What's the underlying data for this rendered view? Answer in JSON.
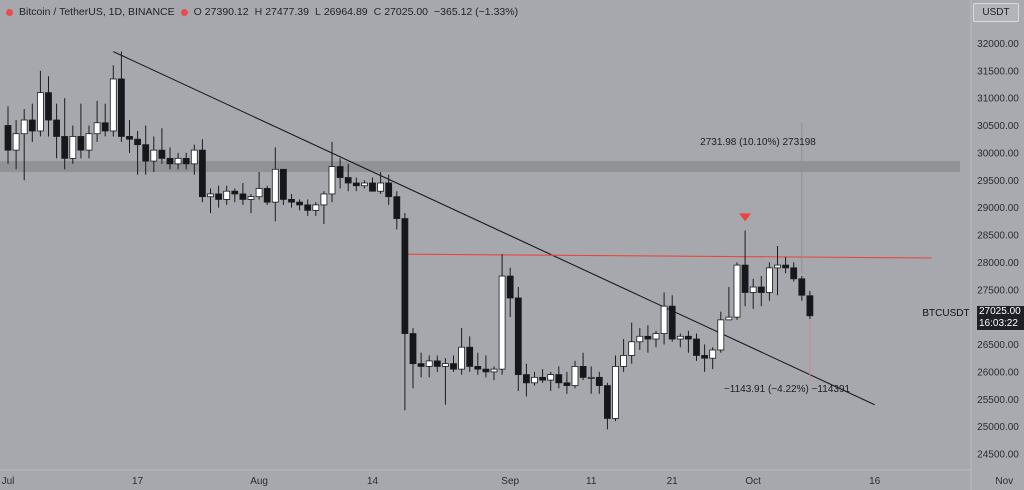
{
  "header": {
    "symbol": "Bitcoin / TetherUS, 1D, BINANCE",
    "open_label": "O",
    "open": "27390.12",
    "high_label": "H",
    "high": "27477.39",
    "low_label": "L",
    "low": "26964.89",
    "close_label": "C",
    "close": "27025.00",
    "change": "−365.12 (−1.33%)"
  },
  "currency_button": "USDT",
  "ticker_label": "BTCUSDT",
  "price_tag": {
    "price": "27025.00",
    "countdown": "16:03:22"
  },
  "annotations": {
    "up_measure": "2731.98 (10.10%) 273198",
    "down_measure": "−1143.91 (−4.22%) −114391"
  },
  "colors": {
    "background": "#a7a8ad",
    "bull_candle": "#ffffff",
    "bear_candle": "#16171b",
    "resistance_line": "#e8463f",
    "marker": "#e8463f",
    "zone": "#8e8f94",
    "trendline": "#1a1b1f"
  },
  "chart_data": {
    "type": "candlestick",
    "title": "",
    "xlabel": "",
    "ylabel": "",
    "ylim": [
      24000,
      32500
    ],
    "y_ticks": [
      24500,
      25000,
      25500,
      26000,
      26500,
      27000,
      27500,
      28000,
      28500,
      29000,
      29500,
      30000,
      30500,
      31000,
      31500,
      32000
    ],
    "x_ticks": [
      {
        "day": 0,
        "label": "Jul"
      },
      {
        "day": 16,
        "label": "17"
      },
      {
        "day": 31,
        "label": "Aug"
      },
      {
        "day": 45,
        "label": "14"
      },
      {
        "day": 62,
        "label": "Sep"
      },
      {
        "day": 72,
        "label": "11"
      },
      {
        "day": 82,
        "label": "21"
      },
      {
        "day": 92,
        "label": "Oct"
      },
      {
        "day": 107,
        "label": "16"
      },
      {
        "day": 123,
        "label": "Nov"
      }
    ],
    "candles": [
      {
        "o": 30500,
        "h": 30850,
        "l": 29800,
        "c": 30050
      },
      {
        "o": 30050,
        "h": 30600,
        "l": 29700,
        "c": 30350
      },
      {
        "o": 30350,
        "h": 30800,
        "l": 29500,
        "c": 30600
      },
      {
        "o": 30600,
        "h": 30900,
        "l": 30200,
        "c": 30400
      },
      {
        "o": 30400,
        "h": 31500,
        "l": 30300,
        "c": 31100
      },
      {
        "o": 31100,
        "h": 31400,
        "l": 30300,
        "c": 30600
      },
      {
        "o": 30600,
        "h": 30900,
        "l": 29900,
        "c": 30300
      },
      {
        "o": 30300,
        "h": 31000,
        "l": 29700,
        "c": 29900
      },
      {
        "o": 29900,
        "h": 30500,
        "l": 29800,
        "c": 30300
      },
      {
        "o": 30300,
        "h": 30900,
        "l": 29900,
        "c": 30050
      },
      {
        "o": 30050,
        "h": 30500,
        "l": 29900,
        "c": 30350
      },
      {
        "o": 30350,
        "h": 30950,
        "l": 30200,
        "c": 30550
      },
      {
        "o": 30550,
        "h": 30900,
        "l": 30300,
        "c": 30400
      },
      {
        "o": 30400,
        "h": 31600,
        "l": 30300,
        "c": 31350
      },
      {
        "o": 31350,
        "h": 31850,
        "l": 30200,
        "c": 30300
      },
      {
        "o": 30300,
        "h": 30600,
        "l": 30000,
        "c": 30250
      },
      {
        "o": 30250,
        "h": 30400,
        "l": 29600,
        "c": 30150
      },
      {
        "o": 30150,
        "h": 30500,
        "l": 29600,
        "c": 29850
      },
      {
        "o": 29850,
        "h": 30300,
        "l": 29650,
        "c": 30050
      },
      {
        "o": 30050,
        "h": 30450,
        "l": 29800,
        "c": 29900
      },
      {
        "o": 29900,
        "h": 30100,
        "l": 29700,
        "c": 29800
      },
      {
        "o": 29800,
        "h": 30000,
        "l": 29700,
        "c": 29900
      },
      {
        "o": 29900,
        "h": 30000,
        "l": 29700,
        "c": 29800
      },
      {
        "o": 29800,
        "h": 30150,
        "l": 29600,
        "c": 30050
      },
      {
        "o": 30050,
        "h": 30250,
        "l": 29100,
        "c": 29200
      },
      {
        "o": 29200,
        "h": 29350,
        "l": 28900,
        "c": 29250
      },
      {
        "o": 29250,
        "h": 29400,
        "l": 29000,
        "c": 29150
      },
      {
        "o": 29150,
        "h": 29400,
        "l": 29050,
        "c": 29300
      },
      {
        "o": 29300,
        "h": 29350,
        "l": 29100,
        "c": 29250
      },
      {
        "o": 29250,
        "h": 29450,
        "l": 29050,
        "c": 29150
      },
      {
        "o": 29150,
        "h": 29250,
        "l": 28900,
        "c": 29200
      },
      {
        "o": 29200,
        "h": 29650,
        "l": 29150,
        "c": 29350
      },
      {
        "o": 29350,
        "h": 29400,
        "l": 29050,
        "c": 29100
      },
      {
        "o": 29100,
        "h": 30100,
        "l": 28750,
        "c": 29700
      },
      {
        "o": 29700,
        "h": 29700,
        "l": 29050,
        "c": 29150
      },
      {
        "o": 29150,
        "h": 29250,
        "l": 29000,
        "c": 29100
      },
      {
        "o": 29100,
        "h": 29150,
        "l": 28950,
        "c": 29050
      },
      {
        "o": 29050,
        "h": 29150,
        "l": 28850,
        "c": 28950
      },
      {
        "o": 28950,
        "h": 29100,
        "l": 28850,
        "c": 29050
      },
      {
        "o": 29050,
        "h": 29300,
        "l": 28700,
        "c": 29250
      },
      {
        "o": 29250,
        "h": 30200,
        "l": 29100,
        "c": 29750
      },
      {
        "o": 29750,
        "h": 29900,
        "l": 29350,
        "c": 29550
      },
      {
        "o": 29550,
        "h": 29800,
        "l": 29300,
        "c": 29450
      },
      {
        "o": 29450,
        "h": 29550,
        "l": 29300,
        "c": 29400
      },
      {
        "o": 29400,
        "h": 29500,
        "l": 29350,
        "c": 29450
      },
      {
        "o": 29450,
        "h": 29550,
        "l": 29350,
        "c": 29300
      },
      {
        "o": 29300,
        "h": 29650,
        "l": 29250,
        "c": 29450
      },
      {
        "o": 29450,
        "h": 29600,
        "l": 29050,
        "c": 29200
      },
      {
        "o": 29200,
        "h": 29300,
        "l": 28600,
        "c": 28800
      },
      {
        "o": 28800,
        "h": 28900,
        "l": 25300,
        "c": 26700
      },
      {
        "o": 26700,
        "h": 26800,
        "l": 25700,
        "c": 26150
      },
      {
        "o": 26150,
        "h": 26350,
        "l": 25900,
        "c": 26100
      },
      {
        "o": 26100,
        "h": 26300,
        "l": 25900,
        "c": 26200
      },
      {
        "o": 26200,
        "h": 26300,
        "l": 26000,
        "c": 26100
      },
      {
        "o": 26100,
        "h": 26250,
        "l": 25400,
        "c": 26150
      },
      {
        "o": 26150,
        "h": 26300,
        "l": 26000,
        "c": 26050
      },
      {
        "o": 26050,
        "h": 26800,
        "l": 25950,
        "c": 26450
      },
      {
        "o": 26450,
        "h": 26650,
        "l": 26000,
        "c": 26100
      },
      {
        "o": 26100,
        "h": 26350,
        "l": 25950,
        "c": 26050
      },
      {
        "o": 26050,
        "h": 26300,
        "l": 25900,
        "c": 26000
      },
      {
        "o": 26000,
        "h": 26100,
        "l": 25850,
        "c": 26050
      },
      {
        "o": 26050,
        "h": 28150,
        "l": 25950,
        "c": 27750
      },
      {
        "o": 27750,
        "h": 27900,
        "l": 27000,
        "c": 27350
      },
      {
        "o": 27350,
        "h": 27550,
        "l": 25650,
        "c": 25950
      },
      {
        "o": 25950,
        "h": 26150,
        "l": 25550,
        "c": 25800
      },
      {
        "o": 25800,
        "h": 26000,
        "l": 25750,
        "c": 25900
      },
      {
        "o": 25900,
        "h": 26050,
        "l": 25800,
        "c": 25850
      },
      {
        "o": 25850,
        "h": 26000,
        "l": 25650,
        "c": 25950
      },
      {
        "o": 25950,
        "h": 26100,
        "l": 25700,
        "c": 25800
      },
      {
        "o": 25800,
        "h": 26000,
        "l": 25600,
        "c": 25750
      },
      {
        "o": 25750,
        "h": 26200,
        "l": 25700,
        "c": 26100
      },
      {
        "o": 26100,
        "h": 26350,
        "l": 25850,
        "c": 25900
      },
      {
        "o": 25900,
        "h": 26100,
        "l": 25600,
        "c": 25900
      },
      {
        "o": 25900,
        "h": 26000,
        "l": 25600,
        "c": 25750
      },
      {
        "o": 25750,
        "h": 25800,
        "l": 24950,
        "c": 25150
      },
      {
        "o": 25150,
        "h": 26300,
        "l": 25100,
        "c": 26100
      },
      {
        "o": 26100,
        "h": 26600,
        "l": 26000,
        "c": 26300
      },
      {
        "o": 26300,
        "h": 26900,
        "l": 26150,
        "c": 26550
      },
      {
        "o": 26550,
        "h": 26800,
        "l": 26400,
        "c": 26650
      },
      {
        "o": 26650,
        "h": 26850,
        "l": 26350,
        "c": 26600
      },
      {
        "o": 26600,
        "h": 26750,
        "l": 26450,
        "c": 26700
      },
      {
        "o": 26700,
        "h": 27450,
        "l": 26500,
        "c": 27200
      },
      {
        "o": 27200,
        "h": 27400,
        "l": 26550,
        "c": 26600
      },
      {
        "o": 26600,
        "h": 26700,
        "l": 26450,
        "c": 26650
      },
      {
        "o": 26650,
        "h": 26750,
        "l": 26350,
        "c": 26600
      },
      {
        "o": 26600,
        "h": 26700,
        "l": 26200,
        "c": 26300
      },
      {
        "o": 26300,
        "h": 26500,
        "l": 26000,
        "c": 26250
      },
      {
        "o": 26250,
        "h": 26450,
        "l": 26050,
        "c": 26400
      },
      {
        "o": 26400,
        "h": 27100,
        "l": 26350,
        "c": 26950
      },
      {
        "o": 26950,
        "h": 27550,
        "l": 26950,
        "c": 27000
      },
      {
        "o": 27000,
        "h": 28000,
        "l": 26950,
        "c": 27950
      },
      {
        "o": 27950,
        "h": 28580,
        "l": 27200,
        "c": 27450
      },
      {
        "o": 27450,
        "h": 27700,
        "l": 27150,
        "c": 27550
      },
      {
        "o": 27550,
        "h": 27750,
        "l": 27200,
        "c": 27450
      },
      {
        "o": 27450,
        "h": 28000,
        "l": 27300,
        "c": 27900
      },
      {
        "o": 27900,
        "h": 28300,
        "l": 27400,
        "c": 27950
      },
      {
        "o": 27950,
        "h": 28100,
        "l": 27800,
        "c": 27900
      },
      {
        "o": 27900,
        "h": 28000,
        "l": 27650,
        "c": 27700
      },
      {
        "o": 27700,
        "h": 27750,
        "l": 27300,
        "c": 27400
      },
      {
        "o": 27390,
        "h": 27477,
        "l": 26965,
        "c": 27025
      }
    ],
    "trendline": {
      "start": {
        "day": 13,
        "price": 31850
      },
      "end": {
        "day": 107,
        "price": 25400
      }
    },
    "resistance": {
      "start_day": 49,
      "end_day": 114,
      "start_price": 28150,
      "end_price": 28080
    },
    "zone": {
      "low": 29650,
      "high": 29850
    },
    "marker_day": 91,
    "marker_price": 28750,
    "up_measure_line": {
      "day": 98,
      "low": 27800,
      "high": 30550
    },
    "down_measure_line": {
      "day": 99,
      "low": 25850,
      "high": 27100
    }
  }
}
